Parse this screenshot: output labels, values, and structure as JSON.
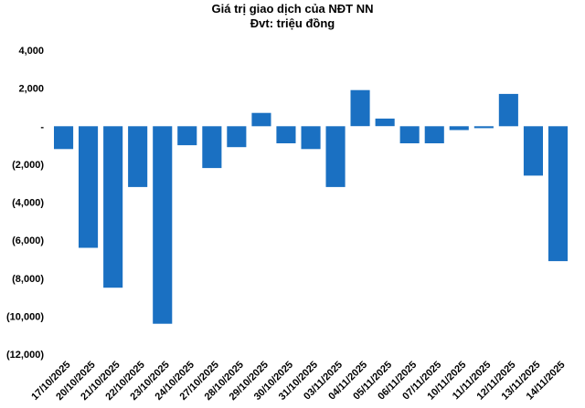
{
  "chart_data": {
    "type": "bar",
    "title": "Giá trị giao dịch của NĐT NN",
    "subtitle": "Đvt: triệu đồng",
    "xlabel": "",
    "ylabel": "",
    "categories": [
      "17/10/2025",
      "20/10/2025",
      "21/10/2025",
      "22/10/2025",
      "23/10/2025",
      "24/10/2025",
      "27/10/2025",
      "28/10/2025",
      "29/10/2025",
      "30/10/2025",
      "31/10/2025",
      "03/11/2025",
      "04/11/2025",
      "05/11/2025",
      "06/11/2025",
      "07/11/2025",
      "10/11/2025",
      "11/11/2025",
      "12/11/2025",
      "13/11/2025",
      "14/11/2025"
    ],
    "values": [
      -1200,
      -6400,
      -8500,
      -3200,
      -10400,
      -1000,
      -2200,
      -1100,
      700,
      -900,
      -1200,
      -3200,
      1900,
      400,
      -900,
      -900,
      -200,
      -100,
      1700,
      -2600,
      -7100
    ],
    "ylim": [
      -12000,
      4000
    ],
    "yticks": [
      4000,
      2000,
      0,
      -2000,
      -4000,
      -6000,
      -8000,
      -10000,
      -12000
    ],
    "ytick_labels": [
      "4,000",
      "2,000",
      "-",
      "(2,000)",
      "(4,000)",
      "(6,000)",
      "(8,000)",
      "(10,000)",
      "(12,000)"
    ],
    "bar_color": "#1a70c2",
    "grid": false,
    "legend": "none"
  }
}
